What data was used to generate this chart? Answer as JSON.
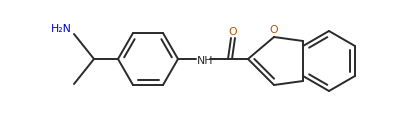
{
  "background_color": "#ffffff",
  "line_color": "#2a2a2a",
  "o_color": "#b35900",
  "n_color": "#0000cc",
  "lw": 1.4,
  "figsize": [
    3.97,
    1.16
  ],
  "dpi": 100,
  "H2N": "H₂N",
  "NH": "NH",
  "O_carb": "O",
  "O_furan": "O"
}
